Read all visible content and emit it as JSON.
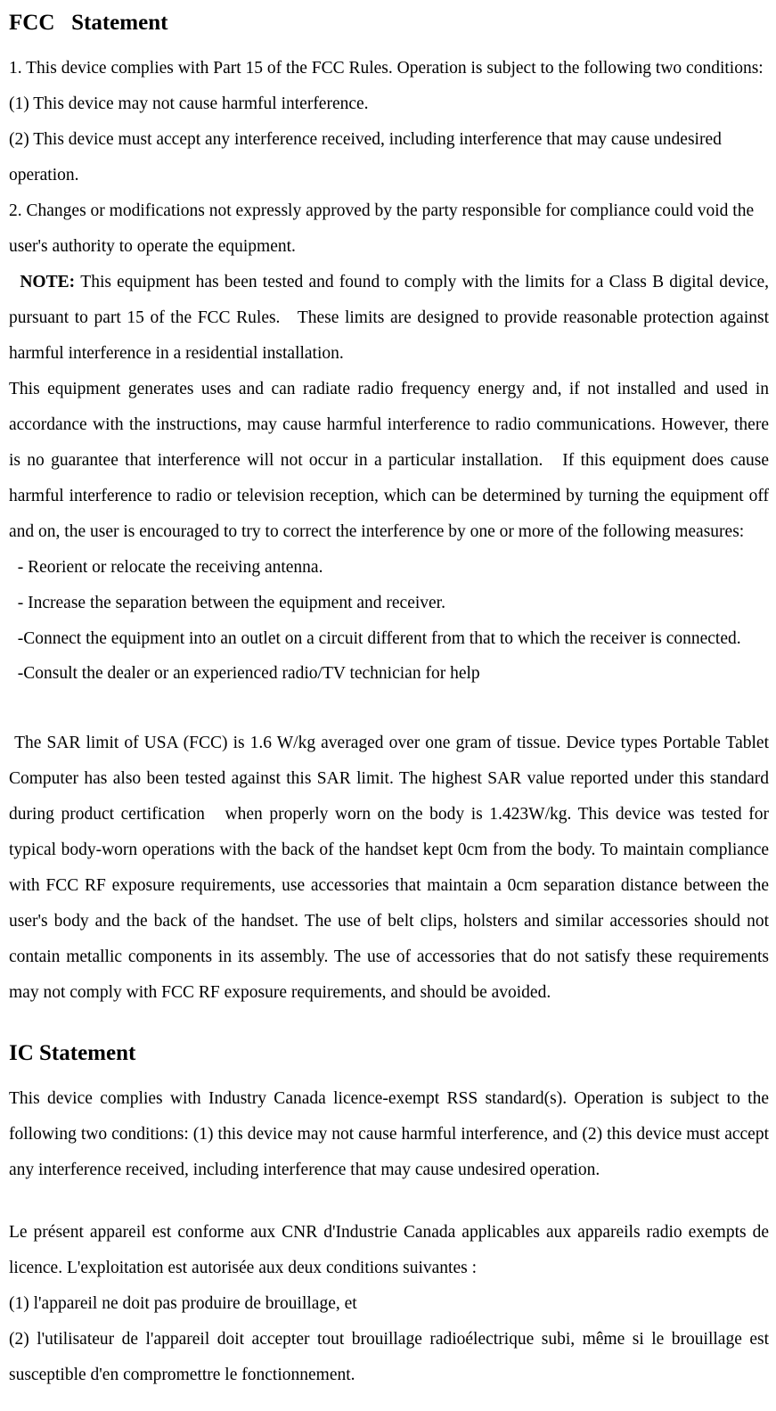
{
  "fcc": {
    "heading": "FCC   Statement",
    "p1": "1. This device complies with Part 15 of the FCC Rules. Operation is subject to the following two conditions:",
    "p2": "(1) This device may not cause harmful interference.",
    "p3": "(2) This device must accept any interference received, including interference that may cause undesired operation.",
    "p4": "2. Changes or modifications not expressly approved by the party responsible for compliance could void the user's authority to operate the equipment.",
    "note_label": "  NOTE: ",
    "note_text": "This equipment has been tested and found to comply with the limits for a Class B digital device, pursuant to part 15 of the FCC Rules.   These limits are designed to provide reasonable protection against harmful interference in a residential installation.",
    "p5": "This equipment generates uses and can radiate radio frequency energy and, if not installed and used in accordance with the instructions, may cause harmful interference to radio communications. However, there is no guarantee that interference will not occur in a particular installation.   If this equipment does cause harmful interference to radio or television reception, which can be determined by turning the equipment off and on, the user is encouraged to try to correct the interference by one or more of the following measures:",
    "m1": "  - Reorient or relocate the receiving antenna.",
    "m2": "  - Increase the separation between the equipment and receiver.",
    "m3": "  -Connect the equipment into an outlet on a circuit different from that to which the receiver is connected.",
    "m4": "  -Consult the dealer or an experienced radio/TV technician for help",
    "sar": " The SAR limit of USA (FCC) is 1.6 W/kg averaged over one gram of tissue. Device types Portable Tablet Computer has also been tested against this SAR limit. The highest SAR value reported under this standard during product certification   when properly worn on the body is 1.423W/kg. This device was tested for typical body-worn operations with the back of the handset kept 0cm from the body. To maintain compliance with FCC RF exposure requirements, use accessories that maintain a 0cm separation distance between the user's body and the back of the handset. The use of belt clips, holsters and similar accessories should not contain metallic components in its assembly. The use of accessories that do not satisfy these requirements may not comply with FCC RF exposure requirements, and should be avoided."
  },
  "ic": {
    "heading": "IC Statement",
    "p1": "This device complies with Industry Canada licence-exempt RSS standard(s). Operation is subject to the following two conditions: (1) this device may not cause harmful interference, and (2) this device must accept any interference received, including interference that may cause undesired operation.",
    "p2": "Le présent appareil est conforme aux CNR d'Industrie Canada applicables aux appareils radio exempts de licence. L'exploitation est autorisée aux deux conditions suivantes :",
    "p3": "(1) l'appareil ne doit pas produire de brouillage, et",
    "p4": "(2) l'utilisateur de l'appareil doit accepter tout brouillage radioélectrique subi, même si le brouillage est susceptible d'en compromettre le fonctionnement."
  }
}
